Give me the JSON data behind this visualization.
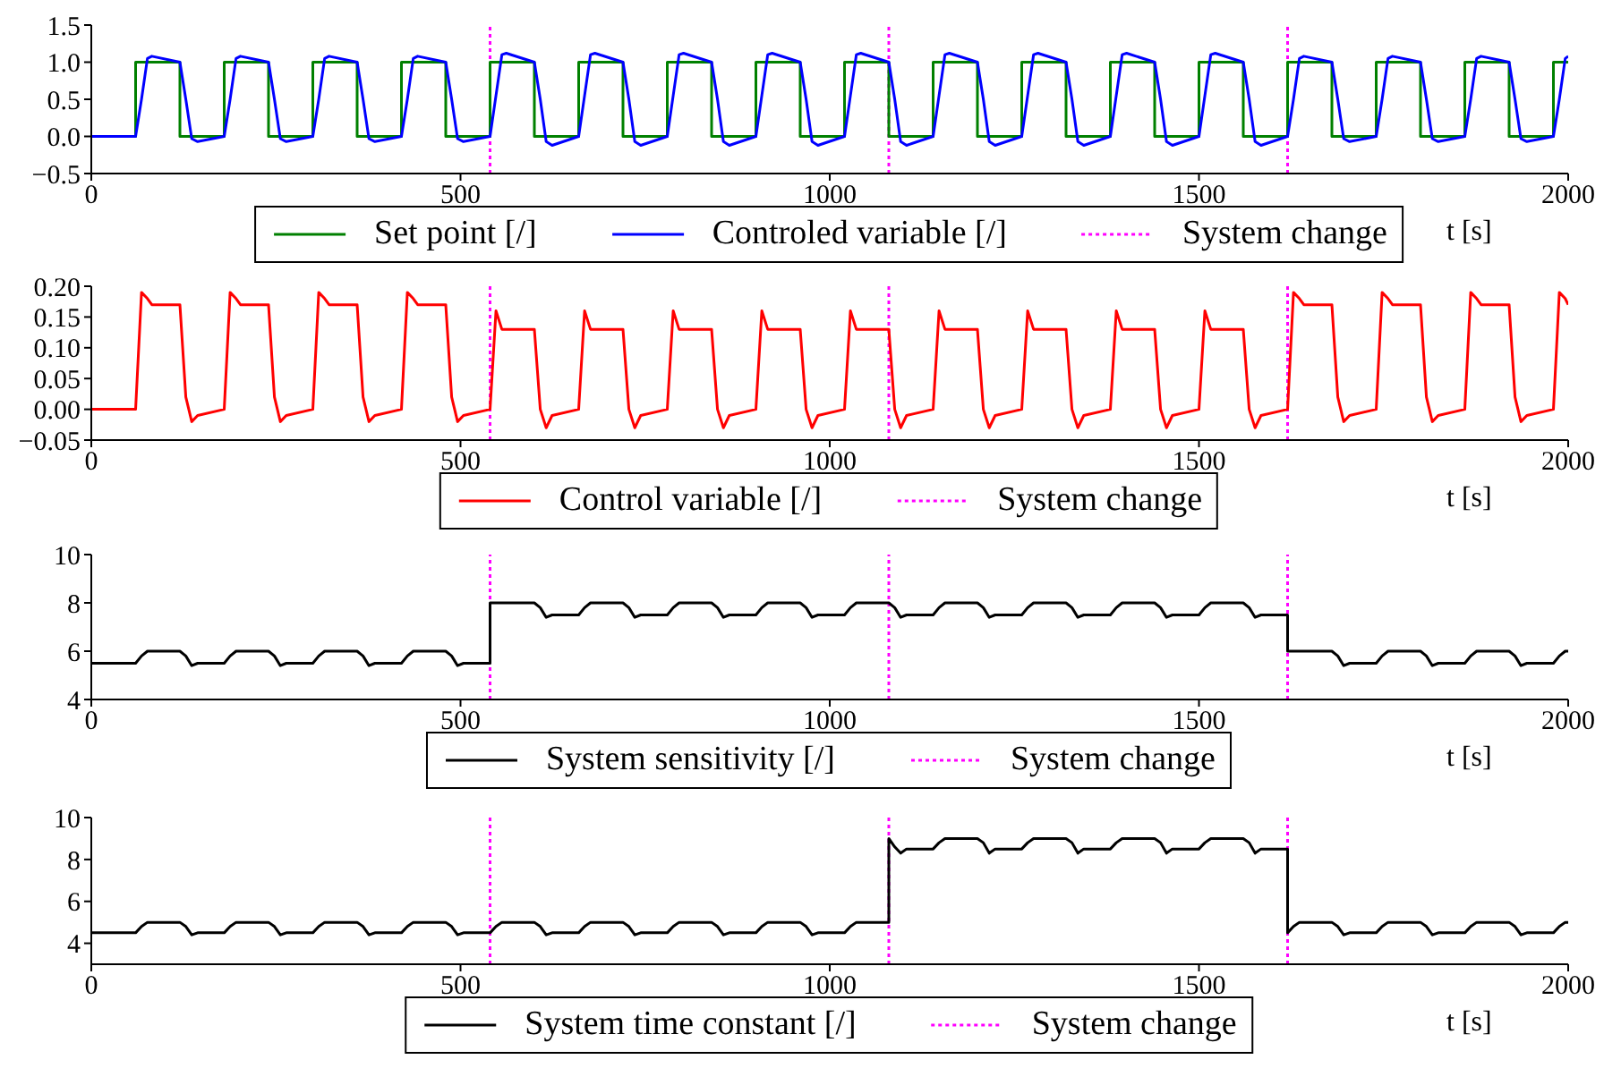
{
  "chart_data": [
    {
      "type": "line",
      "xlabel": "t [s]",
      "xlim": [
        0,
        2000
      ],
      "xticks": [
        0,
        500,
        1000,
        1500,
        2000
      ],
      "ylim": [
        -0.5,
        1.5
      ],
      "yticks": [
        {
          "value": -0.5,
          "label": "−0.5"
        },
        {
          "value": 0,
          "label": "0.0"
        },
        0.5,
        {
          "value": 1,
          "label": "1.0"
        },
        1.5
      ],
      "legend": "bottom",
      "x": [
        0,
        60,
        68,
        76,
        82,
        120,
        128,
        136,
        144,
        180,
        188,
        196,
        202,
        240,
        248,
        256,
        264,
        300,
        308,
        316,
        322,
        360,
        368,
        376,
        384,
        420,
        428,
        436,
        442,
        480,
        488,
        496,
        504,
        540,
        540,
        548,
        556,
        562,
        600,
        608,
        616,
        624,
        660,
        668,
        676,
        682,
        720,
        728,
        736,
        744,
        780,
        788,
        796,
        802,
        840,
        848,
        856,
        864,
        900,
        908,
        916,
        922,
        960,
        968,
        976,
        984,
        1020,
        1028,
        1036,
        1042,
        1080,
        1080,
        1088,
        1096,
        1104,
        1140,
        1148,
        1156,
        1162,
        1200,
        1208,
        1216,
        1224,
        1260,
        1268,
        1276,
        1282,
        1320,
        1328,
        1336,
        1344,
        1380,
        1388,
        1396,
        1402,
        1440,
        1448,
        1456,
        1464,
        1500,
        1508,
        1516,
        1522,
        1560,
        1568,
        1576,
        1584,
        1620,
        1620,
        1628,
        1636,
        1642,
        1680,
        1688,
        1696,
        1704,
        1740,
        1748,
        1756,
        1762,
        1800,
        1808,
        1816,
        1824,
        1860,
        1868,
        1876,
        1882,
        1920,
        1928,
        1936,
        1944,
        1980,
        1988,
        1996,
        2000
      ],
      "series": [
        {
          "name": "Set point [/]",
          "type": "step",
          "color": "#008000",
          "values": [
            0,
            1,
            1,
            1,
            1,
            0,
            0,
            0,
            0,
            1,
            1,
            1,
            1,
            0,
            0,
            0,
            0,
            1,
            1,
            1,
            1,
            0,
            0,
            0,
            0,
            1,
            1,
            1,
            1,
            0,
            0,
            0,
            0,
            1,
            1,
            1,
            1,
            1,
            0,
            0,
            0,
            0,
            1,
            1,
            1,
            1,
            0,
            0,
            0,
            0,
            1,
            1,
            1,
            1,
            0,
            0,
            0,
            0,
            1,
            1,
            1,
            1,
            0,
            0,
            0,
            0,
            1,
            1,
            1,
            1,
            0,
            0,
            0,
            0,
            0,
            1,
            1,
            1,
            1,
            0,
            0,
            0,
            0,
            1,
            1,
            1,
            1,
            0,
            0,
            0,
            0,
            1,
            1,
            1,
            1,
            0,
            0,
            0,
            0,
            1,
            1,
            1,
            1,
            0,
            0,
            0,
            0,
            1,
            1,
            1,
            1,
            1,
            0,
            0,
            0,
            0,
            1,
            1,
            1,
            1,
            0,
            0,
            0,
            0,
            1,
            1,
            1,
            1,
            0,
            0,
            0,
            0,
            1,
            1,
            1,
            1
          ]
        },
        {
          "name": "Controled variable [/]",
          "color": "#0000ff",
          "values": [
            0,
            0,
            0.5,
            1.05,
            1.08,
            1,
            0.5,
            -0.03,
            -0.07,
            0,
            0.5,
            1.05,
            1.08,
            1,
            0.5,
            -0.03,
            -0.07,
            0,
            0.5,
            1.05,
            1.08,
            1,
            0.5,
            -0.03,
            -0.07,
            0,
            0.5,
            1.05,
            1.08,
            1,
            0.5,
            -0.03,
            -0.07,
            0,
            0,
            0.55,
            1.1,
            1.12,
            1,
            0.5,
            -0.07,
            -0.12,
            0,
            0.55,
            1.1,
            1.12,
            1,
            0.5,
            -0.07,
            -0.12,
            0,
            0.55,
            1.1,
            1.12,
            1,
            0.5,
            -0.07,
            -0.12,
            0,
            0.55,
            1.1,
            1.12,
            1,
            0.5,
            -0.07,
            -0.12,
            0,
            0.55,
            1.1,
            1.12,
            1,
            1,
            0.5,
            -0.07,
            -0.12,
            0,
            0.55,
            1.1,
            1.12,
            1,
            0.5,
            -0.07,
            -0.12,
            0,
            0.55,
            1.1,
            1.12,
            1,
            0.5,
            -0.07,
            -0.12,
            0,
            0.55,
            1.1,
            1.12,
            1,
            0.5,
            -0.07,
            -0.12,
            0,
            0.55,
            1.1,
            1.12,
            1,
            0.5,
            -0.07,
            -0.12,
            0,
            0,
            0.5,
            1.05,
            1.08,
            1,
            0.5,
            -0.03,
            -0.07,
            0,
            0.5,
            1.05,
            1.08,
            1,
            0.5,
            -0.03,
            -0.07,
            0,
            0.5,
            1.05,
            1.08,
            1,
            0.5,
            -0.03,
            -0.07,
            0,
            0.5,
            1.05,
            1.08
          ]
        }
      ],
      "ref_lines": [
        {
          "axis": "x",
          "value": 540,
          "label": "System change",
          "color": "#ff00ff",
          "line_style": "dotted"
        },
        {
          "axis": "x",
          "value": 1080,
          "color": "#ff00ff",
          "line_style": "dotted"
        },
        {
          "axis": "x",
          "value": 1620,
          "color": "#ff00ff",
          "line_style": "dotted"
        }
      ]
    },
    {
      "type": "line",
      "xlabel": "t [s]",
      "xlim": [
        0,
        2000
      ],
      "xticks": [
        0,
        500,
        1000,
        1500,
        2000
      ],
      "ylim": [
        -0.05,
        0.2
      ],
      "yticks": [
        {
          "value": -0.05,
          "label": "−0.05"
        },
        {
          "value": 0,
          "label": "0.00"
        },
        {
          "value": 0.05,
          "label": "0.05"
        },
        {
          "value": 0.1,
          "label": "0.10"
        },
        {
          "value": 0.15,
          "label": "0.15"
        },
        {
          "value": 0.2,
          "label": "0.20"
        }
      ],
      "legend": "bottom",
      "x": [
        0,
        60,
        68,
        76,
        82,
        120,
        128,
        136,
        144,
        180,
        188,
        196,
        202,
        240,
        248,
        256,
        264,
        300,
        308,
        316,
        322,
        360,
        368,
        376,
        384,
        420,
        428,
        436,
        442,
        480,
        488,
        496,
        504,
        540,
        540,
        548,
        556,
        562,
        600,
        608,
        616,
        624,
        660,
        668,
        676,
        682,
        720,
        728,
        736,
        744,
        780,
        788,
        796,
        802,
        840,
        848,
        856,
        864,
        900,
        908,
        916,
        922,
        960,
        968,
        976,
        984,
        1020,
        1028,
        1036,
        1042,
        1080,
        1080,
        1088,
        1096,
        1104,
        1140,
        1148,
        1156,
        1162,
        1200,
        1208,
        1216,
        1224,
        1260,
        1268,
        1276,
        1282,
        1320,
        1328,
        1336,
        1344,
        1380,
        1388,
        1396,
        1402,
        1440,
        1448,
        1456,
        1464,
        1500,
        1508,
        1516,
        1522,
        1560,
        1568,
        1576,
        1584,
        1620,
        1620,
        1628,
        1636,
        1642,
        1680,
        1688,
        1696,
        1704,
        1740,
        1748,
        1756,
        1762,
        1800,
        1808,
        1816,
        1824,
        1860,
        1868,
        1876,
        1882,
        1920,
        1928,
        1936,
        1944,
        1980,
        1988,
        1996,
        2000
      ],
      "series": [
        {
          "name": "Control variable [/]",
          "color": "#ff0000",
          "values": [
            0,
            0,
            0.19,
            0.18,
            0.17,
            0.17,
            0.02,
            -0.02,
            -0.01,
            0,
            0.19,
            0.18,
            0.17,
            0.17,
            0.02,
            -0.02,
            -0.01,
            0,
            0.19,
            0.18,
            0.17,
            0.17,
            0.02,
            -0.02,
            -0.01,
            0,
            0.19,
            0.18,
            0.17,
            0.17,
            0.02,
            -0.02,
            -0.01,
            0,
            0,
            0.16,
            0.13,
            0.13,
            0.13,
            0,
            -0.03,
            -0.01,
            0,
            0.16,
            0.13,
            0.13,
            0.13,
            0,
            -0.03,
            -0.01,
            0,
            0.16,
            0.13,
            0.13,
            0.13,
            0,
            -0.03,
            -0.01,
            0,
            0.16,
            0.13,
            0.13,
            0.13,
            0,
            -0.03,
            -0.01,
            0,
            0.16,
            0.13,
            0.13,
            0.13,
            0.13,
            0,
            -0.03,
            -0.01,
            0,
            0.16,
            0.13,
            0.13,
            0.13,
            0,
            -0.03,
            -0.01,
            0,
            0.16,
            0.13,
            0.13,
            0.13,
            0,
            -0.03,
            -0.01,
            0,
            0.16,
            0.13,
            0.13,
            0.13,
            0,
            -0.03,
            -0.01,
            0,
            0.16,
            0.13,
            0.13,
            0.13,
            0,
            -0.03,
            -0.01,
            0,
            0,
            0.19,
            0.18,
            0.17,
            0.17,
            0.02,
            -0.02,
            -0.01,
            0,
            0.19,
            0.18,
            0.17,
            0.17,
            0.02,
            -0.02,
            -0.01,
            0,
            0.19,
            0.18,
            0.17,
            0.17,
            0.02,
            -0.02,
            -0.01,
            0,
            0.19,
            0.18,
            0.17
          ]
        }
      ],
      "ref_lines": [
        {
          "axis": "x",
          "value": 540,
          "label": "System change",
          "color": "#ff00ff",
          "line_style": "dotted"
        },
        {
          "axis": "x",
          "value": 1080,
          "color": "#ff00ff",
          "line_style": "dotted"
        },
        {
          "axis": "x",
          "value": 1620,
          "color": "#ff00ff",
          "line_style": "dotted"
        }
      ]
    },
    {
      "type": "line",
      "xlabel": "t [s]",
      "xlim": [
        0,
        2000
      ],
      "xticks": [
        0,
        500,
        1000,
        1500,
        2000
      ],
      "ylim": [
        4,
        10
      ],
      "yticks": [
        4,
        6,
        8,
        10
      ],
      "legend": "bottom",
      "x": [
        0,
        60,
        68,
        76,
        82,
        120,
        128,
        136,
        144,
        180,
        188,
        196,
        202,
        240,
        248,
        256,
        264,
        300,
        308,
        316,
        322,
        360,
        368,
        376,
        384,
        420,
        428,
        436,
        442,
        480,
        488,
        496,
        504,
        540,
        540,
        548,
        556,
        562,
        600,
        608,
        616,
        624,
        660,
        668,
        676,
        682,
        720,
        728,
        736,
        744,
        780,
        788,
        796,
        802,
        840,
        848,
        856,
        864,
        900,
        908,
        916,
        922,
        960,
        968,
        976,
        984,
        1020,
        1028,
        1036,
        1042,
        1080,
        1080,
        1088,
        1096,
        1104,
        1140,
        1148,
        1156,
        1162,
        1200,
        1208,
        1216,
        1224,
        1260,
        1268,
        1276,
        1282,
        1320,
        1328,
        1336,
        1344,
        1380,
        1388,
        1396,
        1402,
        1440,
        1448,
        1456,
        1464,
        1500,
        1508,
        1516,
        1522,
        1560,
        1568,
        1576,
        1584,
        1620,
        1620,
        1628,
        1636,
        1642,
        1680,
        1688,
        1696,
        1704,
        1740,
        1748,
        1756,
        1762,
        1800,
        1808,
        1816,
        1824,
        1860,
        1868,
        1876,
        1882,
        1920,
        1928,
        1936,
        1944,
        1980,
        1988,
        1996,
        2000
      ],
      "series": [
        {
          "name": "System sensitivity [/]",
          "color": "#000000",
          "values": [
            5.5,
            5.5,
            5.8,
            6,
            6,
            6,
            5.8,
            5.4,
            5.5,
            5.5,
            5.8,
            6,
            6,
            6,
            5.8,
            5.4,
            5.5,
            5.5,
            5.8,
            6,
            6,
            6,
            5.8,
            5.4,
            5.5,
            5.5,
            5.8,
            6,
            6,
            6,
            5.8,
            5.4,
            5.5,
            5.5,
            8,
            8,
            8,
            8,
            8,
            7.8,
            7.4,
            7.5,
            7.5,
            7.8,
            8,
            8,
            8,
            7.8,
            7.4,
            7.5,
            7.5,
            7.8,
            8,
            8,
            8,
            7.8,
            7.4,
            7.5,
            7.5,
            7.8,
            8,
            8,
            8,
            7.8,
            7.4,
            7.5,
            7.5,
            7.8,
            8,
            8,
            8,
            8,
            7.8,
            7.4,
            7.5,
            7.5,
            7.8,
            8,
            8,
            8,
            7.8,
            7.4,
            7.5,
            7.5,
            7.8,
            8,
            8,
            8,
            7.8,
            7.4,
            7.5,
            7.5,
            7.8,
            8,
            8,
            8,
            7.8,
            7.4,
            7.5,
            7.5,
            7.8,
            8,
            8,
            8,
            7.8,
            7.4,
            7.5,
            7.5,
            6,
            6,
            6,
            6,
            6,
            5.8,
            5.4,
            5.5,
            5.5,
            5.8,
            6,
            6,
            6,
            5.8,
            5.4,
            5.5,
            5.5,
            5.8,
            6,
            6,
            6,
            5.8,
            5.4,
            5.5,
            5.5,
            5.8,
            6,
            6
          ]
        }
      ],
      "ref_lines": [
        {
          "axis": "x",
          "value": 540,
          "label": "System change",
          "color": "#ff00ff",
          "line_style": "dotted"
        },
        {
          "axis": "x",
          "value": 1080,
          "color": "#ff00ff",
          "line_style": "dotted"
        },
        {
          "axis": "x",
          "value": 1620,
          "color": "#ff00ff",
          "line_style": "dotted"
        }
      ]
    },
    {
      "type": "line",
      "xlabel": "t [s]",
      "xlim": [
        0,
        2000
      ],
      "xticks": [
        0,
        500,
        1000,
        1500,
        2000
      ],
      "ylim": [
        3,
        10
      ],
      "yticks": [
        4,
        6,
        8,
        10
      ],
      "legend": "bottom",
      "x": [
        0,
        60,
        68,
        76,
        82,
        120,
        128,
        136,
        144,
        180,
        188,
        196,
        202,
        240,
        248,
        256,
        264,
        300,
        308,
        316,
        322,
        360,
        368,
        376,
        384,
        420,
        428,
        436,
        442,
        480,
        488,
        496,
        504,
        540,
        540,
        548,
        556,
        562,
        600,
        608,
        616,
        624,
        660,
        668,
        676,
        682,
        720,
        728,
        736,
        744,
        780,
        788,
        796,
        802,
        840,
        848,
        856,
        864,
        900,
        908,
        916,
        922,
        960,
        968,
        976,
        984,
        1020,
        1028,
        1036,
        1042,
        1080,
        1080,
        1088,
        1096,
        1104,
        1140,
        1148,
        1156,
        1162,
        1200,
        1208,
        1216,
        1224,
        1260,
        1268,
        1276,
        1282,
        1320,
        1328,
        1336,
        1344,
        1380,
        1388,
        1396,
        1402,
        1440,
        1448,
        1456,
        1464,
        1500,
        1508,
        1516,
        1522,
        1560,
        1568,
        1576,
        1584,
        1620,
        1620,
        1628,
        1636,
        1642,
        1680,
        1688,
        1696,
        1704,
        1740,
        1748,
        1756,
        1762,
        1800,
        1808,
        1816,
        1824,
        1860,
        1868,
        1876,
        1882,
        1920,
        1928,
        1936,
        1944,
        1980,
        1988,
        1996,
        2000
      ],
      "series": [
        {
          "name": "System time constant [/]",
          "color": "#000000",
          "values": [
            4.5,
            4.5,
            4.8,
            5,
            5,
            5,
            4.8,
            4.4,
            4.5,
            4.5,
            4.8,
            5,
            5,
            5,
            4.8,
            4.4,
            4.5,
            4.5,
            4.8,
            5,
            5,
            5,
            4.8,
            4.4,
            4.5,
            4.5,
            4.8,
            5,
            5,
            5,
            4.8,
            4.4,
            4.5,
            4.5,
            4.5,
            4.8,
            5,
            5,
            5,
            4.8,
            4.4,
            4.5,
            4.5,
            4.8,
            5,
            5,
            5,
            4.8,
            4.4,
            4.5,
            4.5,
            4.8,
            5,
            5,
            5,
            4.8,
            4.4,
            4.5,
            4.5,
            4.8,
            5,
            5,
            5,
            4.8,
            4.4,
            4.5,
            4.5,
            4.8,
            5,
            5,
            5,
            9,
            8.6,
            8.3,
            8.5,
            8.5,
            8.8,
            9,
            9,
            9,
            8.8,
            8.3,
            8.5,
            8.5,
            8.8,
            9,
            9,
            9,
            8.8,
            8.3,
            8.5,
            8.5,
            8.8,
            9,
            9,
            9,
            8.8,
            8.3,
            8.5,
            8.5,
            8.8,
            9,
            9,
            9,
            8.8,
            8.3,
            8.5,
            8.5,
            4.5,
            4.8,
            5,
            5,
            5,
            4.8,
            4.4,
            4.5,
            4.5,
            4.8,
            5,
            5,
            5,
            4.8,
            4.4,
            4.5,
            4.5,
            4.8,
            5,
            5,
            5,
            4.8,
            4.4,
            4.5,
            4.5,
            4.8,
            5,
            5
          ]
        }
      ],
      "ref_lines": [
        {
          "axis": "x",
          "value": 540,
          "label": "System change",
          "color": "#ff00ff",
          "line_style": "dotted"
        },
        {
          "axis": "x",
          "value": 1080,
          "color": "#ff00ff",
          "line_style": "dotted"
        },
        {
          "axis": "x",
          "value": 1620,
          "color": "#ff00ff",
          "line_style": "dotted"
        }
      ]
    }
  ]
}
